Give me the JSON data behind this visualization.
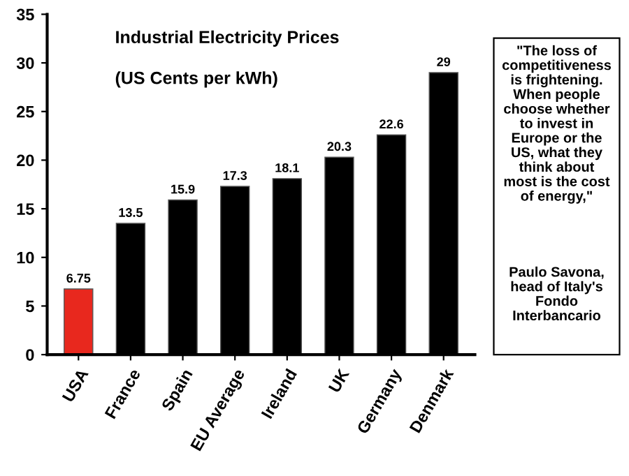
{
  "chart_data": {
    "type": "bar",
    "title": "Industrial Electricity Prices",
    "subtitle": "(US Cents per kWh)",
    "categories": [
      "USA",
      "France",
      "Spain",
      "EU Average",
      "Ireland",
      "UK",
      "Germany",
      "Denmark"
    ],
    "values": [
      6.75,
      13.5,
      15.9,
      17.3,
      18.1,
      20.3,
      22.6,
      29
    ],
    "colors": [
      "#e8281e",
      "#000000",
      "#000000",
      "#000000",
      "#000000",
      "#000000",
      "#000000",
      "#000000"
    ],
    "ylim": [
      0,
      35
    ],
    "yticks": [
      0,
      5,
      10,
      15,
      20,
      25,
      30,
      35
    ],
    "grid": false,
    "data_labels": true,
    "annotations": [
      "\"The loss of\ncompetitiveness\nis frightening.\nWhen people\nchoose whether\nto invest in\nEurope or the\nUS, what they\nthink about\nmost is the cost\nof energy,\"",
      "Paulo Savona,\nhead of Italy's\nFondo\nInterbancario"
    ]
  }
}
